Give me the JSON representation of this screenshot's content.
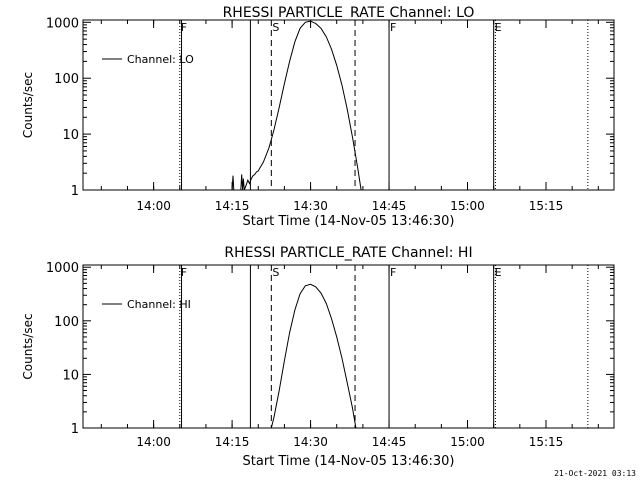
{
  "footer": {
    "timestamp": "21-Oct-2021 03:13"
  },
  "chart_data": [
    {
      "type": "line",
      "title": "RHESSI PARTICLE_RATE Channel: LO",
      "xlabel": "Start Time (14-Nov-05 13:46:30)",
      "ylabel": "Counts/sec",
      "yscale": "log",
      "ylim": [
        1,
        1100
      ],
      "xlim": [
        "13:46:30",
        "15:28:00"
      ],
      "xticks": [
        "14:00",
        "14:15",
        "14:30",
        "14:45",
        "15:00",
        "15:15"
      ],
      "yticks": [
        "1",
        "10",
        "100",
        "1000"
      ],
      "legend": {
        "label": "Channel: LO",
        "position": "top-left"
      },
      "markers": [
        {
          "label": "F",
          "time": "14:05:00",
          "style": "dotted"
        },
        {
          "label": "",
          "time": "14:05:20",
          "style": "solid"
        },
        {
          "label": "",
          "time": "14:18:30",
          "style": "solid"
        },
        {
          "label": "S",
          "time": "14:22:30",
          "style": "dashed"
        },
        {
          "label": "",
          "time": "14:38:30",
          "style": "dashed"
        },
        {
          "label": "F",
          "time": "14:45:00",
          "style": "solid"
        },
        {
          "label": "E",
          "time": "15:05:00",
          "style": "solid"
        },
        {
          "label": "",
          "time": "15:05:20",
          "style": "dotted"
        },
        {
          "label": "",
          "time": "15:23:00",
          "style": "dotted"
        }
      ],
      "series": [
        {
          "points": [
            [
              "14:15:00",
              1
            ],
            [
              "14:15:10",
              1.8
            ],
            [
              "14:15:20",
              1
            ],
            [
              "14:16:40",
              1
            ],
            [
              "14:16:50",
              1.9
            ],
            [
              "14:17:00",
              1
            ],
            [
              "14:17:10",
              1.6
            ],
            [
              "14:17:20",
              1
            ],
            [
              "14:17:40",
              1.2
            ],
            [
              "14:18:00",
              1.5
            ],
            [
              "14:18:20",
              1.3
            ],
            [
              "14:18:40",
              1.6
            ],
            [
              "14:19:00",
              1.8
            ],
            [
              "14:19:20",
              1.9
            ],
            [
              "14:19:40",
              2.1
            ],
            [
              "14:20:00",
              2.2
            ],
            [
              "14:20:20",
              2.5
            ],
            [
              "14:20:40",
              2.8
            ],
            [
              "14:21:00",
              3.2
            ],
            [
              "14:21:30",
              4.2
            ],
            [
              "14:22:00",
              5.5
            ],
            [
              "14:22:30",
              8
            ],
            [
              "14:23:00",
              12
            ],
            [
              "14:24:00",
              30
            ],
            [
              "14:25:00",
              80
            ],
            [
              "14:26:00",
              200
            ],
            [
              "14:27:00",
              450
            ],
            [
              "14:28:00",
              780
            ],
            [
              "14:29:00",
              1000
            ],
            [
              "14:30:00",
              1050
            ],
            [
              "14:31:00",
              950
            ],
            [
              "14:32:00",
              780
            ],
            [
              "14:33:00",
              550
            ],
            [
              "14:34:00",
              330
            ],
            [
              "14:35:00",
              170
            ],
            [
              "14:36:00",
              75
            ],
            [
              "14:37:00",
              28
            ],
            [
              "14:38:00",
              9
            ],
            [
              "14:39:00",
              2.5
            ],
            [
              "14:39:40",
              1
            ]
          ]
        }
      ]
    },
    {
      "type": "line",
      "title": "RHESSI PARTICLE_RATE Channel: HI",
      "xlabel": "Start Time (14-Nov-05 13:46:30)",
      "ylabel": "Counts/sec",
      "yscale": "log",
      "ylim": [
        1,
        1100
      ],
      "xlim": [
        "13:46:30",
        "15:28:00"
      ],
      "xticks": [
        "14:00",
        "14:15",
        "14:30",
        "14:45",
        "15:00",
        "15:15"
      ],
      "yticks": [
        "1",
        "10",
        "100",
        "1000"
      ],
      "legend": {
        "label": "Channel: HI",
        "position": "top-left"
      },
      "markers": [
        {
          "label": "F",
          "time": "14:05:00",
          "style": "dotted"
        },
        {
          "label": "",
          "time": "14:05:20",
          "style": "solid"
        },
        {
          "label": "",
          "time": "14:18:30",
          "style": "solid"
        },
        {
          "label": "S",
          "time": "14:22:30",
          "style": "dashed"
        },
        {
          "label": "",
          "time": "14:38:30",
          "style": "dashed"
        },
        {
          "label": "F",
          "time": "14:45:00",
          "style": "solid"
        },
        {
          "label": "E",
          "time": "15:05:00",
          "style": "solid"
        },
        {
          "label": "",
          "time": "15:05:20",
          "style": "dotted"
        },
        {
          "label": "",
          "time": "15:23:00",
          "style": "dotted"
        }
      ],
      "series": [
        {
          "points": [
            [
              "14:22:30",
              1
            ],
            [
              "14:23:00",
              1.6
            ],
            [
              "14:24:00",
              5
            ],
            [
              "14:25:00",
              18
            ],
            [
              "14:26:00",
              60
            ],
            [
              "14:27:00",
              160
            ],
            [
              "14:28:00",
              320
            ],
            [
              "14:29:00",
              450
            ],
            [
              "14:30:00",
              480
            ],
            [
              "14:31:00",
              430
            ],
            [
              "14:32:00",
              330
            ],
            [
              "14:33:00",
              210
            ],
            [
              "14:34:00",
              110
            ],
            [
              "14:35:00",
              50
            ],
            [
              "14:36:00",
              20
            ],
            [
              "14:37:00",
              7
            ],
            [
              "14:38:00",
              2.4
            ],
            [
              "14:38:40",
              1
            ]
          ]
        }
      ]
    }
  ]
}
